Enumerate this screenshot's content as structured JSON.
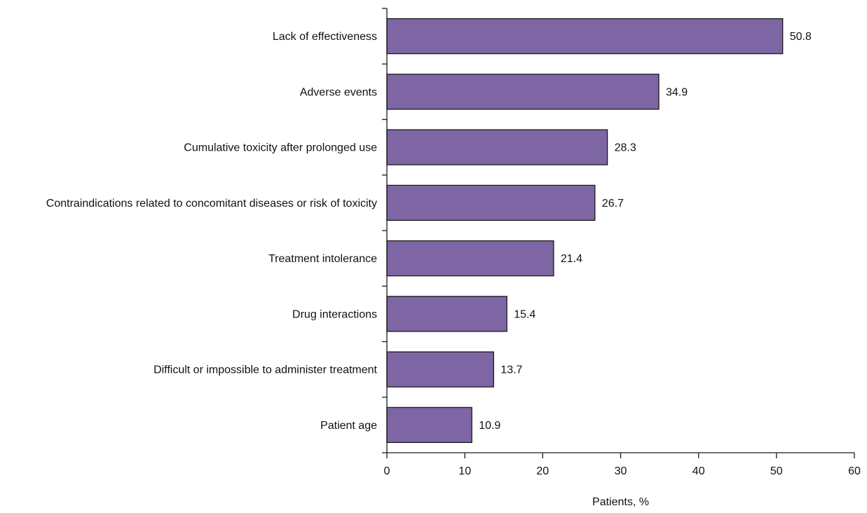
{
  "chart_data": {
    "type": "bar",
    "orientation": "horizontal",
    "categories": [
      "Lack of effectiveness",
      "Adverse events",
      "Cumulative toxicity after prolonged use",
      "Contraindications related to concomitant diseases or risk of toxicity",
      "Treatment intolerance",
      "Drug interactions",
      "Difficult or impossible to administer treatment",
      "Patient age"
    ],
    "values": [
      50.8,
      34.9,
      28.3,
      26.7,
      21.4,
      15.4,
      13.7,
      10.9
    ],
    "value_labels": [
      "50.8",
      "34.9",
      "28.3",
      "26.7",
      "21.4",
      "15.4",
      "13.7",
      "10.9"
    ],
    "xlabel": "Patients, %",
    "ylabel": "",
    "xlim": [
      0,
      60
    ],
    "x_ticks": [
      "0",
      "10",
      "20",
      "30",
      "40",
      "50",
      "60"
    ],
    "grid": false,
    "legend": "none",
    "colors": {
      "bar_fill": "#7e65a3",
      "bar_stroke": "#1a1a1a",
      "axis": "#1a1a1a"
    }
  }
}
